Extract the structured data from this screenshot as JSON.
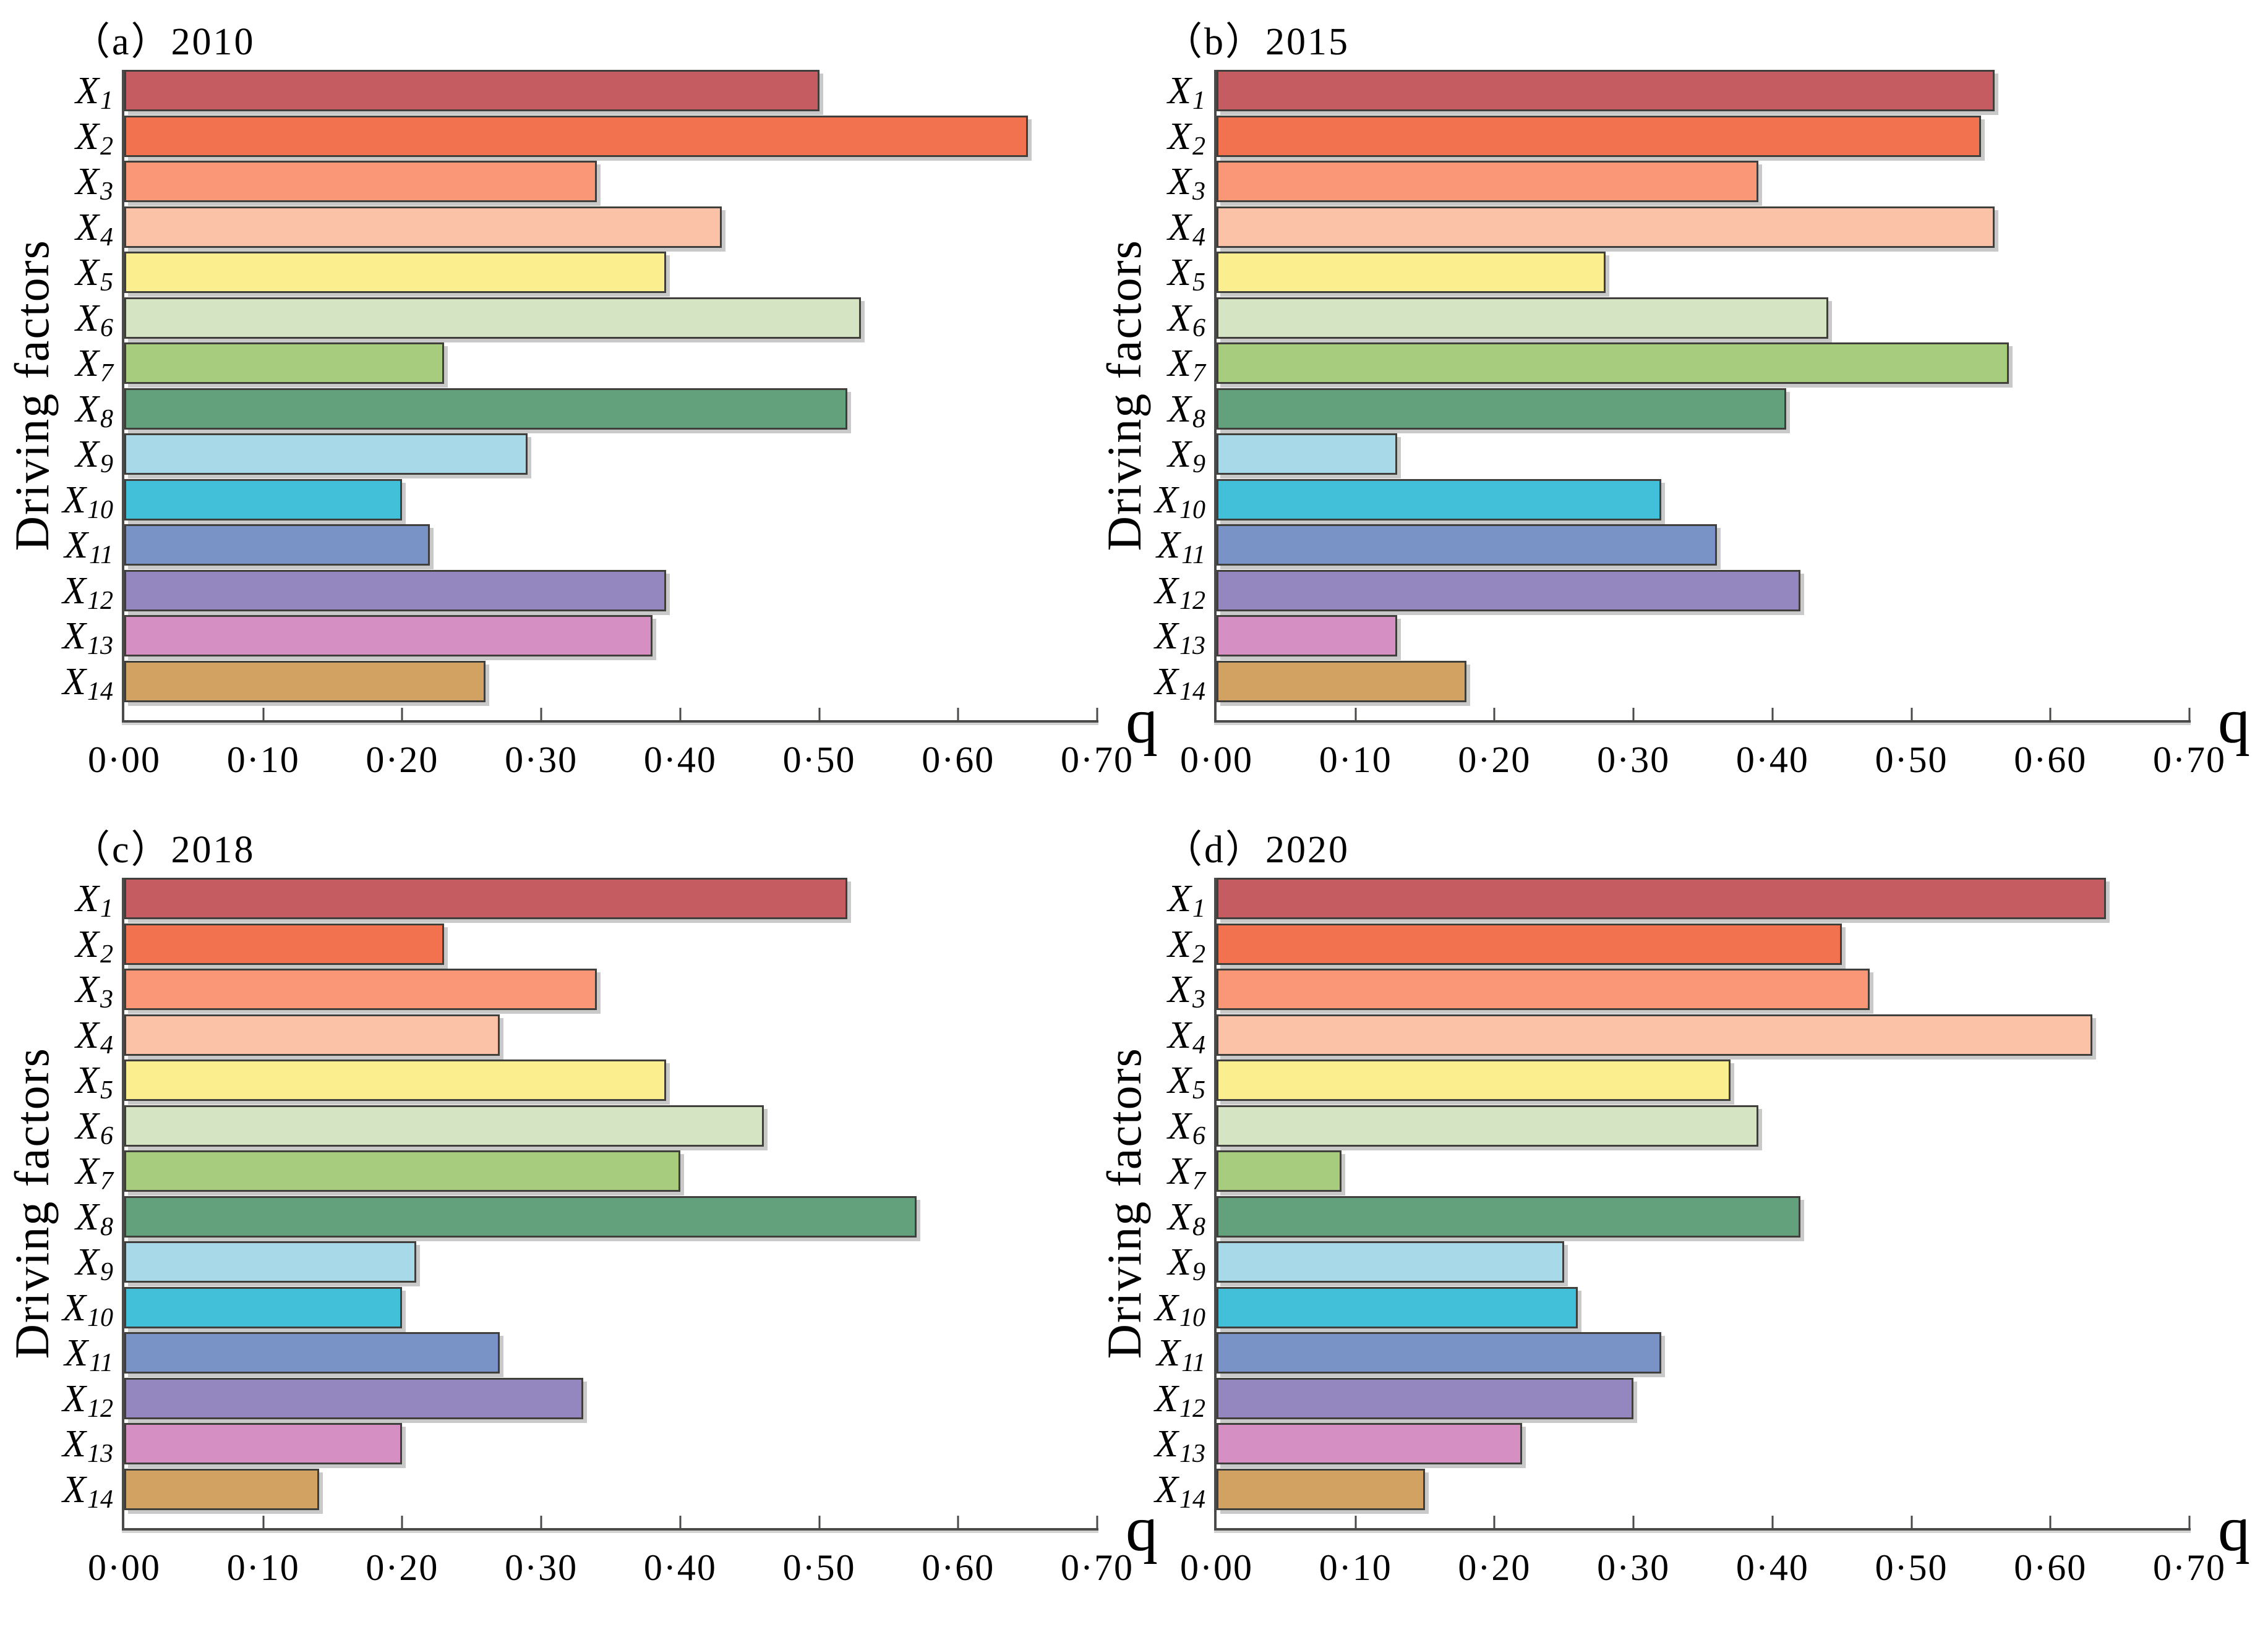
{
  "figure": {
    "xlabel": "q",
    "ylabel": "Driving factors",
    "xtick_labels": [
      "0·00",
      "0·10",
      "0·20",
      "0·30",
      "0·40",
      "0·50",
      "0·60",
      "0·70"
    ],
    "category_base": "X",
    "category_subs": [
      "1",
      "2",
      "3",
      "4",
      "5",
      "6",
      "7",
      "8",
      "9",
      "10",
      "11",
      "12",
      "13",
      "14"
    ],
    "bar_colors": [
      "#c45c62",
      "#f2714e",
      "#f99776",
      "#fbc2a7",
      "#faee8e",
      "#d5e5c4",
      "#a7cc7d",
      "#63a07c",
      "#a8d9e9",
      "#42bfd9",
      "#7a93c6",
      "#9486bf",
      "#d58fc3",
      "#d1a262"
    ],
    "bar_border_color": "#413f3c",
    "axis_color": "#4a4a49"
  },
  "chart_data": [
    {
      "type": "bar",
      "orientation": "horizontal",
      "title": "（a）2010",
      "categories": [
        "X1",
        "X2",
        "X3",
        "X4",
        "X5",
        "X6",
        "X7",
        "X8",
        "X9",
        "X10",
        "X11",
        "X12",
        "X13",
        "X14"
      ],
      "values": [
        0.5,
        0.65,
        0.34,
        0.43,
        0.39,
        0.53,
        0.23,
        0.52,
        0.29,
        0.2,
        0.22,
        0.39,
        0.38,
        0.26
      ],
      "xlabel": "q",
      "ylabel": "Driving factors",
      "xlim": [
        0,
        0.7
      ],
      "xticks": [
        0.0,
        0.1,
        0.2,
        0.3,
        0.4,
        0.5,
        0.6,
        0.7
      ],
      "grid": false,
      "legend": "none"
    },
    {
      "type": "bar",
      "orientation": "horizontal",
      "title": "（b）2015",
      "categories": [
        "X1",
        "X2",
        "X3",
        "X4",
        "X5",
        "X6",
        "X7",
        "X8",
        "X9",
        "X10",
        "X11",
        "X12",
        "X13",
        "X14"
      ],
      "values": [
        0.56,
        0.55,
        0.39,
        0.56,
        0.28,
        0.44,
        0.57,
        0.41,
        0.13,
        0.32,
        0.36,
        0.42,
        0.13,
        0.18
      ],
      "xlabel": "q",
      "ylabel": "Driving factors",
      "xlim": [
        0,
        0.7
      ],
      "xticks": [
        0.0,
        0.1,
        0.2,
        0.3,
        0.4,
        0.5,
        0.6,
        0.7
      ],
      "grid": false,
      "legend": "none"
    },
    {
      "type": "bar",
      "orientation": "horizontal",
      "title": "（c）2018",
      "categories": [
        "X1",
        "X2",
        "X3",
        "X4",
        "X5",
        "X6",
        "X7",
        "X8",
        "X9",
        "X10",
        "X11",
        "X12",
        "X13",
        "X14"
      ],
      "values": [
        0.52,
        0.23,
        0.34,
        0.27,
        0.39,
        0.46,
        0.4,
        0.57,
        0.21,
        0.2,
        0.27,
        0.33,
        0.2,
        0.14
      ],
      "xlabel": "q",
      "ylabel": "Driving factors",
      "xlim": [
        0,
        0.7
      ],
      "xticks": [
        0.0,
        0.1,
        0.2,
        0.3,
        0.4,
        0.5,
        0.6,
        0.7
      ],
      "grid": false,
      "legend": "none"
    },
    {
      "type": "bar",
      "orientation": "horizontal",
      "title": "（d）2020",
      "categories": [
        "X1",
        "X2",
        "X3",
        "X4",
        "X5",
        "X6",
        "X7",
        "X8",
        "X9",
        "X10",
        "X11",
        "X12",
        "X13",
        "X14"
      ],
      "values": [
        0.64,
        0.45,
        0.47,
        0.63,
        0.37,
        0.39,
        0.09,
        0.42,
        0.25,
        0.26,
        0.32,
        0.3,
        0.22,
        0.15
      ],
      "xlabel": "q",
      "ylabel": "Driving factors",
      "xlim": [
        0,
        0.7
      ],
      "xticks": [
        0.0,
        0.1,
        0.2,
        0.3,
        0.4,
        0.5,
        0.6,
        0.7
      ],
      "grid": false,
      "legend": "none"
    }
  ]
}
